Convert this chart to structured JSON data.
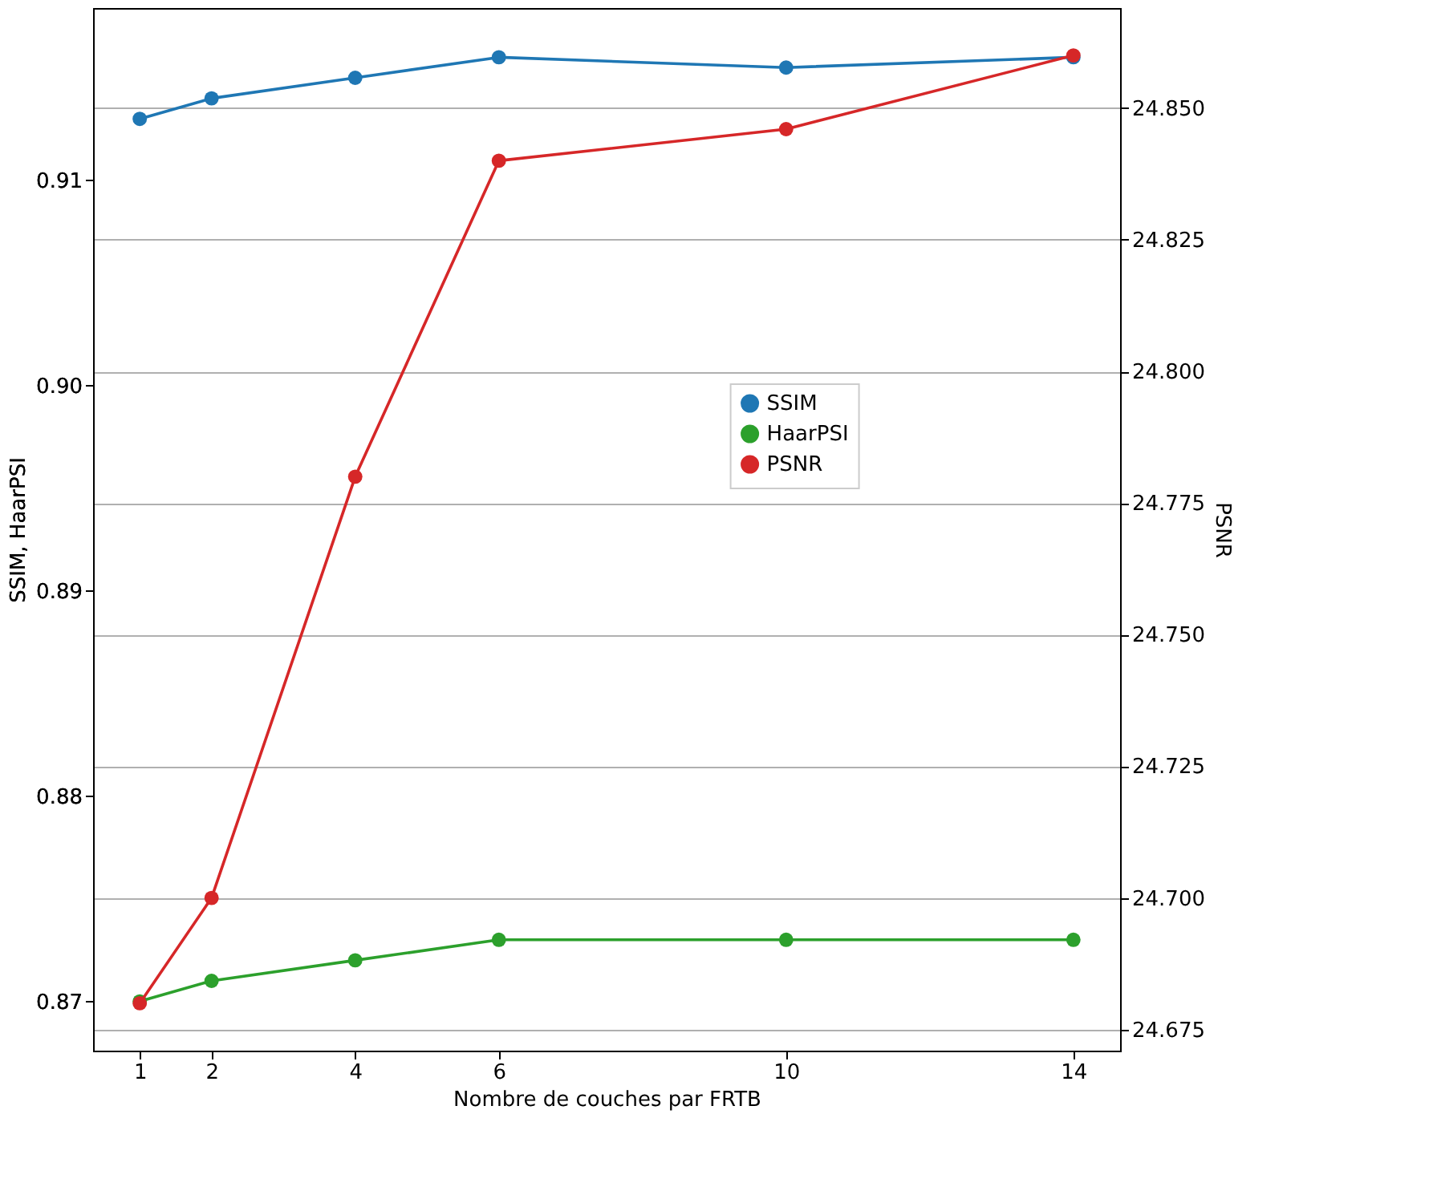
{
  "chart_data": {
    "type": "line",
    "xlabel": "Nombre de couches par FRTB",
    "ylabel": "SSIM,  HaarPSI",
    "y2label": "PSNR",
    "x": [
      1,
      2,
      4,
      6,
      10,
      14
    ],
    "series": [
      {
        "name": "SSIM",
        "color": "#1f77b4",
        "values": [
          0.913,
          0.914,
          0.915,
          0.916,
          0.9155,
          0.916
        ]
      },
      {
        "name": "HaarPSI",
        "color": "#2ca02c",
        "values": [
          0.87,
          0.871,
          0.872,
          0.873,
          0.873,
          0.873
        ]
      },
      {
        "name": "PSNR",
        "color": "#d62728",
        "axis": "y2",
        "values": [
          24.68,
          24.7,
          24.78,
          24.84,
          24.846,
          24.86
        ]
      }
    ],
    "xlim": [
      0.35,
      14.65
    ],
    "xticks": [
      1,
      2,
      4,
      6,
      10,
      14
    ],
    "ylim": [
      0.8676,
      0.9184
    ],
    "yticks": [
      0.87,
      0.88,
      0.89,
      {
        "value": 0.9,
        "label": "0.90"
      },
      0.91
    ],
    "y2lim": [
      24.671,
      24.869
    ],
    "y2ticks": [
      24.675,
      {
        "value": 24.7,
        "label": "24.700"
      },
      24.725,
      {
        "value": 24.75,
        "label": "24.750"
      },
      24.775,
      {
        "value": 24.8,
        "label": "24.800"
      },
      24.825,
      {
        "value": 24.85,
        "label": "24.850"
      }
    ],
    "grid": "y2",
    "legend": "right",
    "marker": "circle",
    "line_style": "solid"
  }
}
